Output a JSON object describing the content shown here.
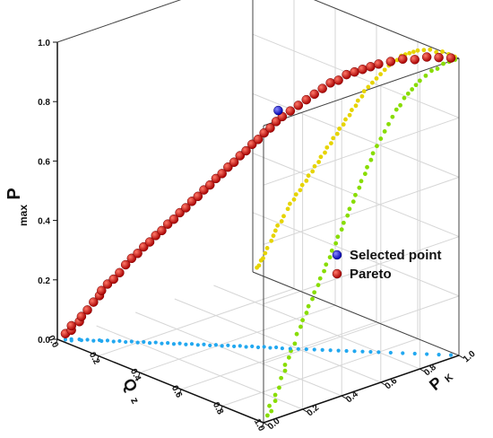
{
  "chart_data": {
    "type": "scatter",
    "dimensions": 3,
    "axes": {
      "x": {
        "label": "Q",
        "subscript": "z",
        "range": [
          0,
          1
        ],
        "ticks": [
          "0.0",
          "0.2",
          "0.4",
          "0.6",
          "0.8",
          "1.0"
        ]
      },
      "y": {
        "label": "P",
        "subscript": "K",
        "range": [
          0,
          1
        ],
        "ticks": [
          "0.0",
          "0.2",
          "0.4",
          "0.6",
          "0.8",
          "1.0"
        ]
      },
      "z": {
        "label": "P",
        "subscript": "max",
        "range": [
          0,
          1
        ],
        "ticks": [
          "0.0",
          "0.2",
          "0.4",
          "0.6",
          "0.8",
          "1.0"
        ]
      }
    },
    "grid": true,
    "legend": {
      "position": "center-right",
      "entries": [
        {
          "name": "Selected point",
          "color": "#1a1aff"
        },
        {
          "name": "Pareto",
          "color": "#cc0000"
        }
      ]
    },
    "colors": {
      "pareto": "#cc0000",
      "selected": "#1a1aff",
      "proj_xz": "#e6d400",
      "proj_yz": "#88dd00",
      "proj_xy": "#22a8f0"
    },
    "series": [
      {
        "name": "Selected point",
        "points": [
          [
            0.55,
            0.55,
            0.8
          ]
        ]
      },
      {
        "name": "Pareto",
        "points": [
          [
            0.02,
            0.02,
            0.02
          ],
          [
            0.03,
            0.04,
            0.03
          ],
          [
            0.04,
            0.03,
            0.05
          ],
          [
            0.05,
            0.06,
            0.06
          ],
          [
            0.06,
            0.06,
            0.08
          ],
          [
            0.07,
            0.08,
            0.1
          ],
          [
            0.09,
            0.09,
            0.13
          ],
          [
            0.1,
            0.11,
            0.15
          ],
          [
            0.11,
            0.11,
            0.17
          ],
          [
            0.12,
            0.13,
            0.19
          ],
          [
            0.14,
            0.14,
            0.21
          ],
          [
            0.15,
            0.16,
            0.23
          ],
          [
            0.17,
            0.17,
            0.26
          ],
          [
            0.18,
            0.19,
            0.28
          ],
          [
            0.2,
            0.2,
            0.3
          ],
          [
            0.21,
            0.22,
            0.32
          ],
          [
            0.23,
            0.23,
            0.34
          ],
          [
            0.24,
            0.25,
            0.36
          ],
          [
            0.26,
            0.26,
            0.38
          ],
          [
            0.27,
            0.28,
            0.4
          ],
          [
            0.29,
            0.29,
            0.42
          ],
          [
            0.3,
            0.31,
            0.44
          ],
          [
            0.32,
            0.32,
            0.46
          ],
          [
            0.33,
            0.34,
            0.48
          ],
          [
            0.35,
            0.35,
            0.5
          ],
          [
            0.36,
            0.37,
            0.52
          ],
          [
            0.38,
            0.38,
            0.54
          ],
          [
            0.39,
            0.4,
            0.56
          ],
          [
            0.41,
            0.41,
            0.58
          ],
          [
            0.42,
            0.43,
            0.6
          ],
          [
            0.44,
            0.44,
            0.62
          ],
          [
            0.45,
            0.46,
            0.64
          ],
          [
            0.47,
            0.47,
            0.66
          ],
          [
            0.48,
            0.49,
            0.68
          ],
          [
            0.5,
            0.5,
            0.7
          ],
          [
            0.51,
            0.52,
            0.72
          ],
          [
            0.53,
            0.53,
            0.74
          ],
          [
            0.54,
            0.55,
            0.76
          ],
          [
            0.56,
            0.56,
            0.78
          ],
          [
            0.58,
            0.58,
            0.8
          ],
          [
            0.6,
            0.6,
            0.82
          ],
          [
            0.62,
            0.62,
            0.84
          ],
          [
            0.64,
            0.64,
            0.86
          ],
          [
            0.66,
            0.66,
            0.88
          ],
          [
            0.68,
            0.68,
            0.9
          ],
          [
            0.7,
            0.7,
            0.91
          ],
          [
            0.72,
            0.72,
            0.93
          ],
          [
            0.74,
            0.74,
            0.94
          ],
          [
            0.76,
            0.76,
            0.95
          ],
          [
            0.78,
            0.78,
            0.96
          ],
          [
            0.8,
            0.8,
            0.97
          ],
          [
            0.83,
            0.83,
            0.98
          ],
          [
            0.86,
            0.86,
            0.99
          ],
          [
            0.89,
            0.89,
            0.99
          ],
          [
            0.92,
            0.92,
            1.0
          ],
          [
            0.95,
            0.95,
            1.0
          ],
          [
            0.98,
            0.98,
            1.0
          ]
        ]
      }
    ]
  }
}
